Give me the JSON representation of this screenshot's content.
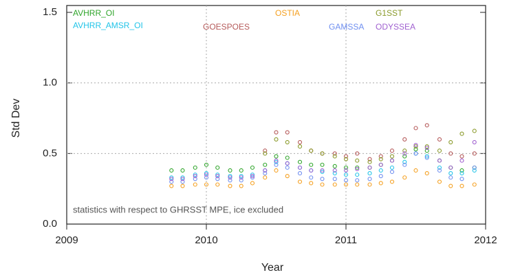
{
  "chart_data": {
    "type": "scatter",
    "x_label": "Year",
    "y_label": "Std Dev",
    "annotation": "statistics with respect to GHRSST MPE, ice excluded",
    "x": [
      2009.75,
      2009.83,
      2009.92,
      2010.0,
      2010.08,
      2010.17,
      2010.25,
      2010.33,
      2010.42,
      2010.5,
      2010.58,
      2010.67,
      2010.75,
      2010.83,
      2010.92,
      2011.0,
      2011.08,
      2011.17,
      2011.25,
      2011.33,
      2011.42,
      2011.5,
      2011.58,
      2011.67,
      2011.75,
      2011.83,
      2011.92
    ],
    "series": [
      {
        "name": "AVHRR_OI",
        "color": "#2fa52a",
        "values": [
          0.38,
          0.38,
          0.4,
          0.42,
          0.4,
          0.38,
          0.38,
          0.4,
          0.42,
          0.48,
          0.47,
          0.44,
          0.42,
          0.42,
          0.41,
          0.4,
          0.4,
          0.4,
          0.42,
          0.45,
          0.48,
          0.53,
          0.52,
          0.45,
          0.4,
          0.38,
          0.4
        ]
      },
      {
        "name": "AVHRR_AMSR_OI",
        "color": "#22c4e8",
        "values": [
          0.33,
          0.33,
          0.35,
          0.36,
          0.35,
          0.34,
          0.34,
          0.35,
          0.38,
          0.44,
          0.43,
          0.4,
          0.38,
          0.37,
          0.36,
          0.35,
          0.35,
          0.36,
          0.38,
          0.4,
          0.44,
          0.5,
          0.48,
          0.4,
          0.36,
          0.36,
          0.38
        ]
      },
      {
        "name": "GOESPOES",
        "color": "#b55a5a",
        "values": [
          null,
          null,
          null,
          null,
          null,
          null,
          null,
          null,
          0.52,
          0.65,
          0.65,
          0.58,
          0.52,
          0.5,
          0.5,
          0.48,
          0.5,
          0.46,
          0.48,
          0.52,
          0.6,
          0.68,
          0.7,
          0.6,
          0.5,
          0.48,
          0.5
        ]
      },
      {
        "name": "OSTIA",
        "color": "#f5a020",
        "values": [
          0.27,
          0.27,
          0.28,
          0.28,
          0.28,
          0.27,
          0.27,
          0.29,
          0.33,
          0.38,
          0.34,
          0.3,
          0.29,
          0.28,
          0.28,
          0.28,
          0.28,
          0.28,
          0.29,
          0.3,
          0.33,
          0.38,
          0.36,
          0.3,
          0.27,
          0.27,
          0.28
        ]
      },
      {
        "name": "GAMSSA",
        "color": "#6f8ff0",
        "values": [
          0.3,
          0.3,
          0.32,
          0.33,
          0.32,
          0.31,
          0.31,
          0.33,
          0.36,
          0.42,
          0.4,
          0.36,
          0.33,
          0.32,
          0.32,
          0.31,
          0.31,
          0.32,
          0.34,
          0.37,
          0.42,
          0.5,
          0.47,
          0.38,
          0.33,
          0.32,
          0.4
        ]
      },
      {
        "name": "G1SST",
        "color": "#8a9a2a",
        "values": [
          null,
          null,
          null,
          null,
          null,
          null,
          null,
          null,
          0.5,
          0.6,
          0.58,
          0.55,
          0.52,
          0.5,
          0.48,
          0.46,
          0.45,
          0.44,
          0.46,
          0.48,
          0.52,
          0.55,
          0.55,
          0.52,
          0.58,
          0.64,
          0.66
        ]
      },
      {
        "name": "ODYSSEA",
        "color": "#a060d0",
        "values": [
          0.32,
          0.32,
          0.34,
          0.35,
          0.34,
          0.33,
          0.33,
          0.34,
          0.38,
          0.45,
          0.43,
          0.4,
          0.38,
          0.38,
          0.38,
          0.38,
          0.39,
          0.4,
          0.42,
          0.45,
          0.5,
          0.56,
          0.54,
          0.45,
          0.4,
          0.45,
          0.58
        ]
      }
    ],
    "xlim": [
      2009,
      2012
    ],
    "xticks": [
      2009,
      2010,
      2011,
      2012
    ],
    "ylim": [
      0,
      1.5
    ],
    "yticks": [
      {
        "value": 0,
        "label": "0.0"
      },
      0.5,
      {
        "value": 1,
        "label": "1.0"
      },
      1.5
    ],
    "grid": true
  }
}
